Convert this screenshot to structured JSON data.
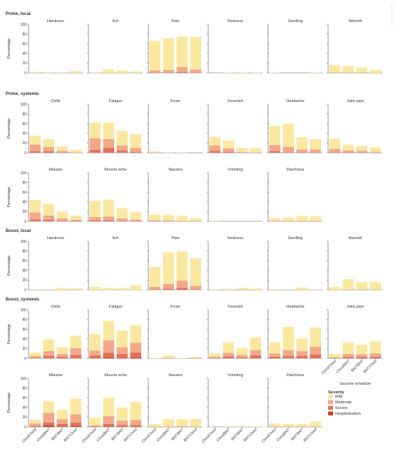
{
  "colors": {
    "mild": "#fbe8a0",
    "moderate": "#f2a889",
    "severe": "#e2725b",
    "hospitalisation": "#cf3b22",
    "axis": "#555555",
    "text": "#333333"
  },
  "axis_label": "Percentage",
  "xlabel": "Vaccine schedule",
  "legend": {
    "title": "Severity",
    "items": [
      "Mild",
      "Moderate",
      "Severe",
      "Hospitalisation"
    ]
  },
  "chart_data": {
    "type": "bar",
    "stacked": true,
    "categories": [
      "ChAd/ChAd",
      "ChAd/BNT",
      "BNT/BNT",
      "BNT/ChAd"
    ],
    "ylim": [
      0,
      100
    ],
    "yticks": [
      0,
      20,
      40,
      60,
      80,
      100
    ],
    "series_names": [
      "Mild",
      "Moderate",
      "Severe",
      "Hospitalisation"
    ],
    "sections": [
      {
        "title": "Prime, local",
        "panels": [
          {
            "title": "Hardness",
            "values": [
              [
                2,
                0,
                0,
                0
              ],
              [
                1,
                0,
                0,
                0
              ],
              [
                1,
                0,
                0,
                0
              ],
              [
                4,
                0,
                0,
                0
              ]
            ]
          },
          {
            "title": "Itch",
            "values": [
              [
                1,
                0,
                0,
                0
              ],
              [
                7,
                0,
                0,
                0
              ],
              [
                5,
                0,
                0,
                0
              ],
              [
                3,
                0,
                0,
                0
              ]
            ]
          },
          {
            "title": "Pain",
            "values": [
              [
                61,
                4,
                1,
                0
              ],
              [
                65,
                5,
                1,
                0
              ],
              [
                63,
                10,
                2,
                0
              ],
              [
                67,
                6,
                1,
                0
              ]
            ]
          },
          {
            "title": "Redness",
            "values": [
              [
                0,
                0,
                0,
                0
              ],
              [
                1,
                0,
                0,
                0
              ],
              [
                1,
                0,
                0,
                0
              ],
              [
                1,
                0,
                0,
                0
              ]
            ]
          },
          {
            "title": "Swelling",
            "values": [
              [
                1,
                0,
                0,
                0
              ],
              [
                0,
                0,
                0,
                0
              ],
              [
                0,
                0,
                0,
                0
              ],
              [
                1,
                0,
                0,
                0
              ]
            ]
          },
          {
            "title": "Warmth",
            "values": [
              [
                15,
                1,
                0,
                0
              ],
              [
                13,
                1,
                0,
                0
              ],
              [
                10,
                1,
                0,
                0
              ],
              [
                6,
                0,
                0,
                0
              ]
            ]
          }
        ]
      },
      {
        "title": "Prime, systemic",
        "panels": [
          {
            "title": "Chills",
            "values": [
              [
                18,
                14,
                3,
                0
              ],
              [
                16,
                9,
                3,
                0
              ],
              [
                9,
                3,
                1,
                0
              ],
              [
                5,
                1,
                0,
                0
              ]
            ]
          },
          {
            "title": "Fatigue",
            "values": [
              [
                32,
                24,
                6,
                0
              ],
              [
                34,
                18,
                10,
                0
              ],
              [
                30,
                10,
                5,
                0
              ],
              [
                28,
                8,
                2,
                0
              ]
            ]
          },
          {
            "title": "Fever",
            "values": [
              [
                2,
                1,
                0,
                0
              ],
              [
                1,
                0,
                0,
                0
              ],
              [
                1,
                0,
                0,
                0
              ],
              [
                0,
                0,
                0,
                0
              ]
            ]
          },
          {
            "title": "Feverish",
            "values": [
              [
                18,
                11,
                4,
                0
              ],
              [
                16,
                7,
                2,
                0
              ],
              [
                8,
                2,
                0,
                0
              ],
              [
                9,
                1,
                0,
                0
              ]
            ]
          },
          {
            "title": "Headache",
            "values": [
              [
                39,
                13,
                3,
                0
              ],
              [
                48,
                11,
                1,
                0
              ],
              [
                25,
                6,
                1,
                0
              ],
              [
                21,
                6,
                1,
                0
              ]
            ]
          },
          {
            "title": "Joint pain",
            "values": [
              [
                21,
                7,
                1,
                0
              ],
              [
                12,
                4,
                1,
                0
              ],
              [
                10,
                3,
                1,
                0
              ],
              [
                9,
                2,
                0,
                0
              ]
            ]
          }
        ]
      },
      {
        "title": "",
        "panels": [
          {
            "title": "Malaise",
            "values": [
              [
                26,
                14,
                4,
                0
              ],
              [
                24,
                9,
                3,
                0
              ],
              [
                14,
                5,
                1,
                0
              ],
              [
                9,
                2,
                1,
                0
              ]
            ]
          },
          {
            "title": "Muscle ache",
            "values": [
              [
                33,
                7,
                2,
                0
              ],
              [
                35,
                8,
                2,
                0
              ],
              [
                21,
                5,
                1,
                0
              ],
              [
                16,
                2,
                1,
                0
              ]
            ]
          },
          {
            "title": "Nausea",
            "values": [
              [
                12,
                2,
                0,
                0
              ],
              [
                11,
                2,
                0,
                0
              ],
              [
                10,
                1,
                0,
                0
              ],
              [
                6,
                1,
                0,
                0
              ]
            ]
          },
          {
            "title": "Vomiting",
            "values": [
              [
                1,
                0,
                0,
                0
              ],
              [
                0,
                0,
                0,
                0
              ],
              [
                0,
                0,
                0,
                0
              ],
              [
                0,
                0,
                0,
                0
              ]
            ]
          },
          {
            "title": "Diarrhoea",
            "values": [
              [
                6,
                1,
                0,
                0
              ],
              [
                7,
                1,
                0,
                0
              ],
              [
                10,
                1,
                0,
                0
              ],
              [
                9,
                1,
                0,
                0
              ]
            ]
          }
        ]
      },
      {
        "title": "Boost, local",
        "panels": [
          {
            "title": "Hardness",
            "values": [
              [
                1,
                0,
                0,
                0
              ],
              [
                1,
                0,
                0,
                0
              ],
              [
                4,
                0,
                0,
                0
              ],
              [
                3,
                0,
                0,
                0
              ]
            ]
          },
          {
            "title": "Itch",
            "values": [
              [
                6,
                0,
                0,
                0
              ],
              [
                4,
                0,
                0,
                0
              ],
              [
                4,
                0,
                0,
                0
              ],
              [
                9,
                0,
                0,
                0
              ]
            ]
          },
          {
            "title": "Pain",
            "values": [
              [
                41,
                5,
                1,
                0
              ],
              [
                65,
                10,
                2,
                0
              ],
              [
                60,
                15,
                4,
                0
              ],
              [
                57,
                7,
                1,
                0
              ]
            ]
          },
          {
            "title": "Redness",
            "values": [
              [
                1,
                0,
                0,
                0
              ],
              [
                2,
                0,
                0,
                0
              ],
              [
                3,
                1,
                0,
                0
              ],
              [
                3,
                0,
                0,
                0
              ]
            ]
          },
          {
            "title": "Swelling",
            "values": [
              [
                1,
                0,
                0,
                0
              ],
              [
                1,
                0,
                0,
                0
              ],
              [
                5,
                0,
                0,
                0
              ],
              [
                1,
                0,
                0,
                0
              ]
            ]
          },
          {
            "title": "Warmth",
            "values": [
              [
                6,
                0,
                0,
                0
              ],
              [
                21,
                1,
                0,
                0
              ],
              [
                15,
                1,
                0,
                0
              ],
              [
                15,
                1,
                0,
                0
              ]
            ]
          }
        ]
      },
      {
        "title": "Boost, systemic",
        "panels": [
          {
            "title": "Chills",
            "values": [
              [
                7,
                4,
                1,
                0
              ],
              [
                24,
                10,
                5,
                0
              ],
              [
                14,
                6,
                3,
                0
              ],
              [
                26,
                14,
                7,
                0
              ]
            ]
          },
          {
            "title": "Fatigue",
            "values": [
              [
                34,
                10,
                6,
                0
              ],
              [
                40,
                25,
                10,
                2
              ],
              [
                34,
                14,
                8,
                1
              ],
              [
                36,
                20,
                10,
                2
              ]
            ]
          },
          {
            "title": "Fever",
            "values": [
              [
                1,
                0,
                0,
                0
              ],
              [
                5,
                1,
                0,
                0
              ],
              [
                1,
                0,
                0,
                0
              ],
              [
                2,
                1,
                0,
                0
              ]
            ]
          },
          {
            "title": "Feverish",
            "values": [
              [
                7,
                2,
                1,
                0
              ],
              [
                22,
                7,
                4,
                0
              ],
              [
                14,
                5,
                2,
                0
              ],
              [
                26,
                11,
                6,
                0
              ]
            ]
          },
          {
            "title": "Headache",
            "values": [
              [
                23,
                7,
                3,
                0
              ],
              [
                48,
                12,
                5,
                0
              ],
              [
                26,
                10,
                5,
                0
              ],
              [
                40,
                16,
                8,
                0
              ]
            ]
          },
          {
            "title": "Joint pain",
            "values": [
              [
                7,
                1,
                1,
                0
              ],
              [
                24,
                6,
                3,
                0
              ],
              [
                20,
                5,
                3,
                0
              ],
              [
                25,
                7,
                3,
                0
              ]
            ]
          }
        ]
      },
      {
        "title": "",
        "panels": [
          {
            "title": "Malaise",
            "values": [
              [
                8,
                5,
                2,
                0
              ],
              [
                24,
                20,
                6,
                3
              ],
              [
                19,
                10,
                5,
                1
              ],
              [
                32,
                17,
                7,
                2
              ]
            ]
          },
          {
            "title": "Muscle ache",
            "values": [
              [
                16,
                2,
                1,
                0
              ],
              [
                38,
                16,
                5,
                1
              ],
              [
                27,
                9,
                4,
                0
              ],
              [
                37,
                10,
                4,
                0
              ]
            ]
          },
          {
            "title": "Nausea",
            "values": [
              [
                5,
                1,
                0,
                0
              ],
              [
                15,
                1,
                0,
                0
              ],
              [
                14,
                2,
                0,
                0
              ],
              [
                15,
                1,
                0,
                0
              ]
            ]
          },
          {
            "title": "Vomiting",
            "values": [
              [
                0,
                0,
                0,
                0
              ],
              [
                1,
                0,
                0,
                0
              ],
              [
                2,
                0,
                0,
                0
              ],
              [
                1,
                0,
                0,
                0
              ]
            ]
          },
          {
            "title": "Diarrhoea",
            "values": [
              [
                6,
                1,
                0,
                0
              ],
              [
                5,
                1,
                0,
                0
              ],
              [
                5,
                1,
                0,
                0
              ],
              [
                10,
                1,
                0,
                0
              ]
            ]
          }
        ]
      }
    ]
  }
}
